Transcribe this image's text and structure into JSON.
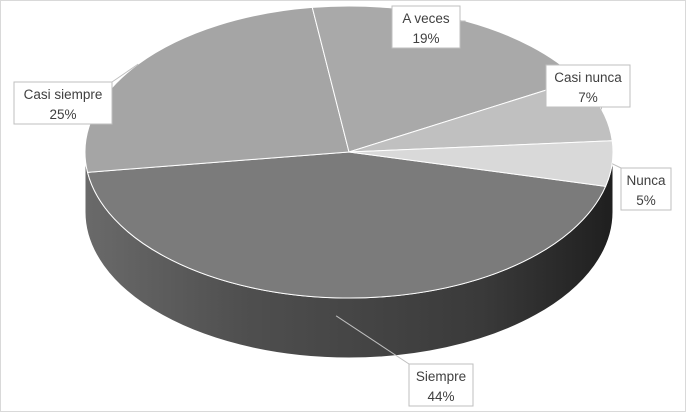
{
  "chart_data": {
    "type": "pie",
    "style": "3d-pie",
    "categories": [
      "Siempre",
      "Casi siempre",
      "A veces",
      "Casi nunca",
      "Nunca"
    ],
    "values": [
      44,
      25,
      19,
      7,
      5
    ],
    "value_labels": [
      "44%",
      "25%",
      "19%",
      "7%",
      "5%"
    ],
    "colors": [
      "#7b7b7b",
      "#a5a5a5",
      "#a9a9a9",
      "#c0c0c0",
      "#d9d9d9"
    ],
    "legend": "none",
    "data_labels": "category and percentage"
  }
}
